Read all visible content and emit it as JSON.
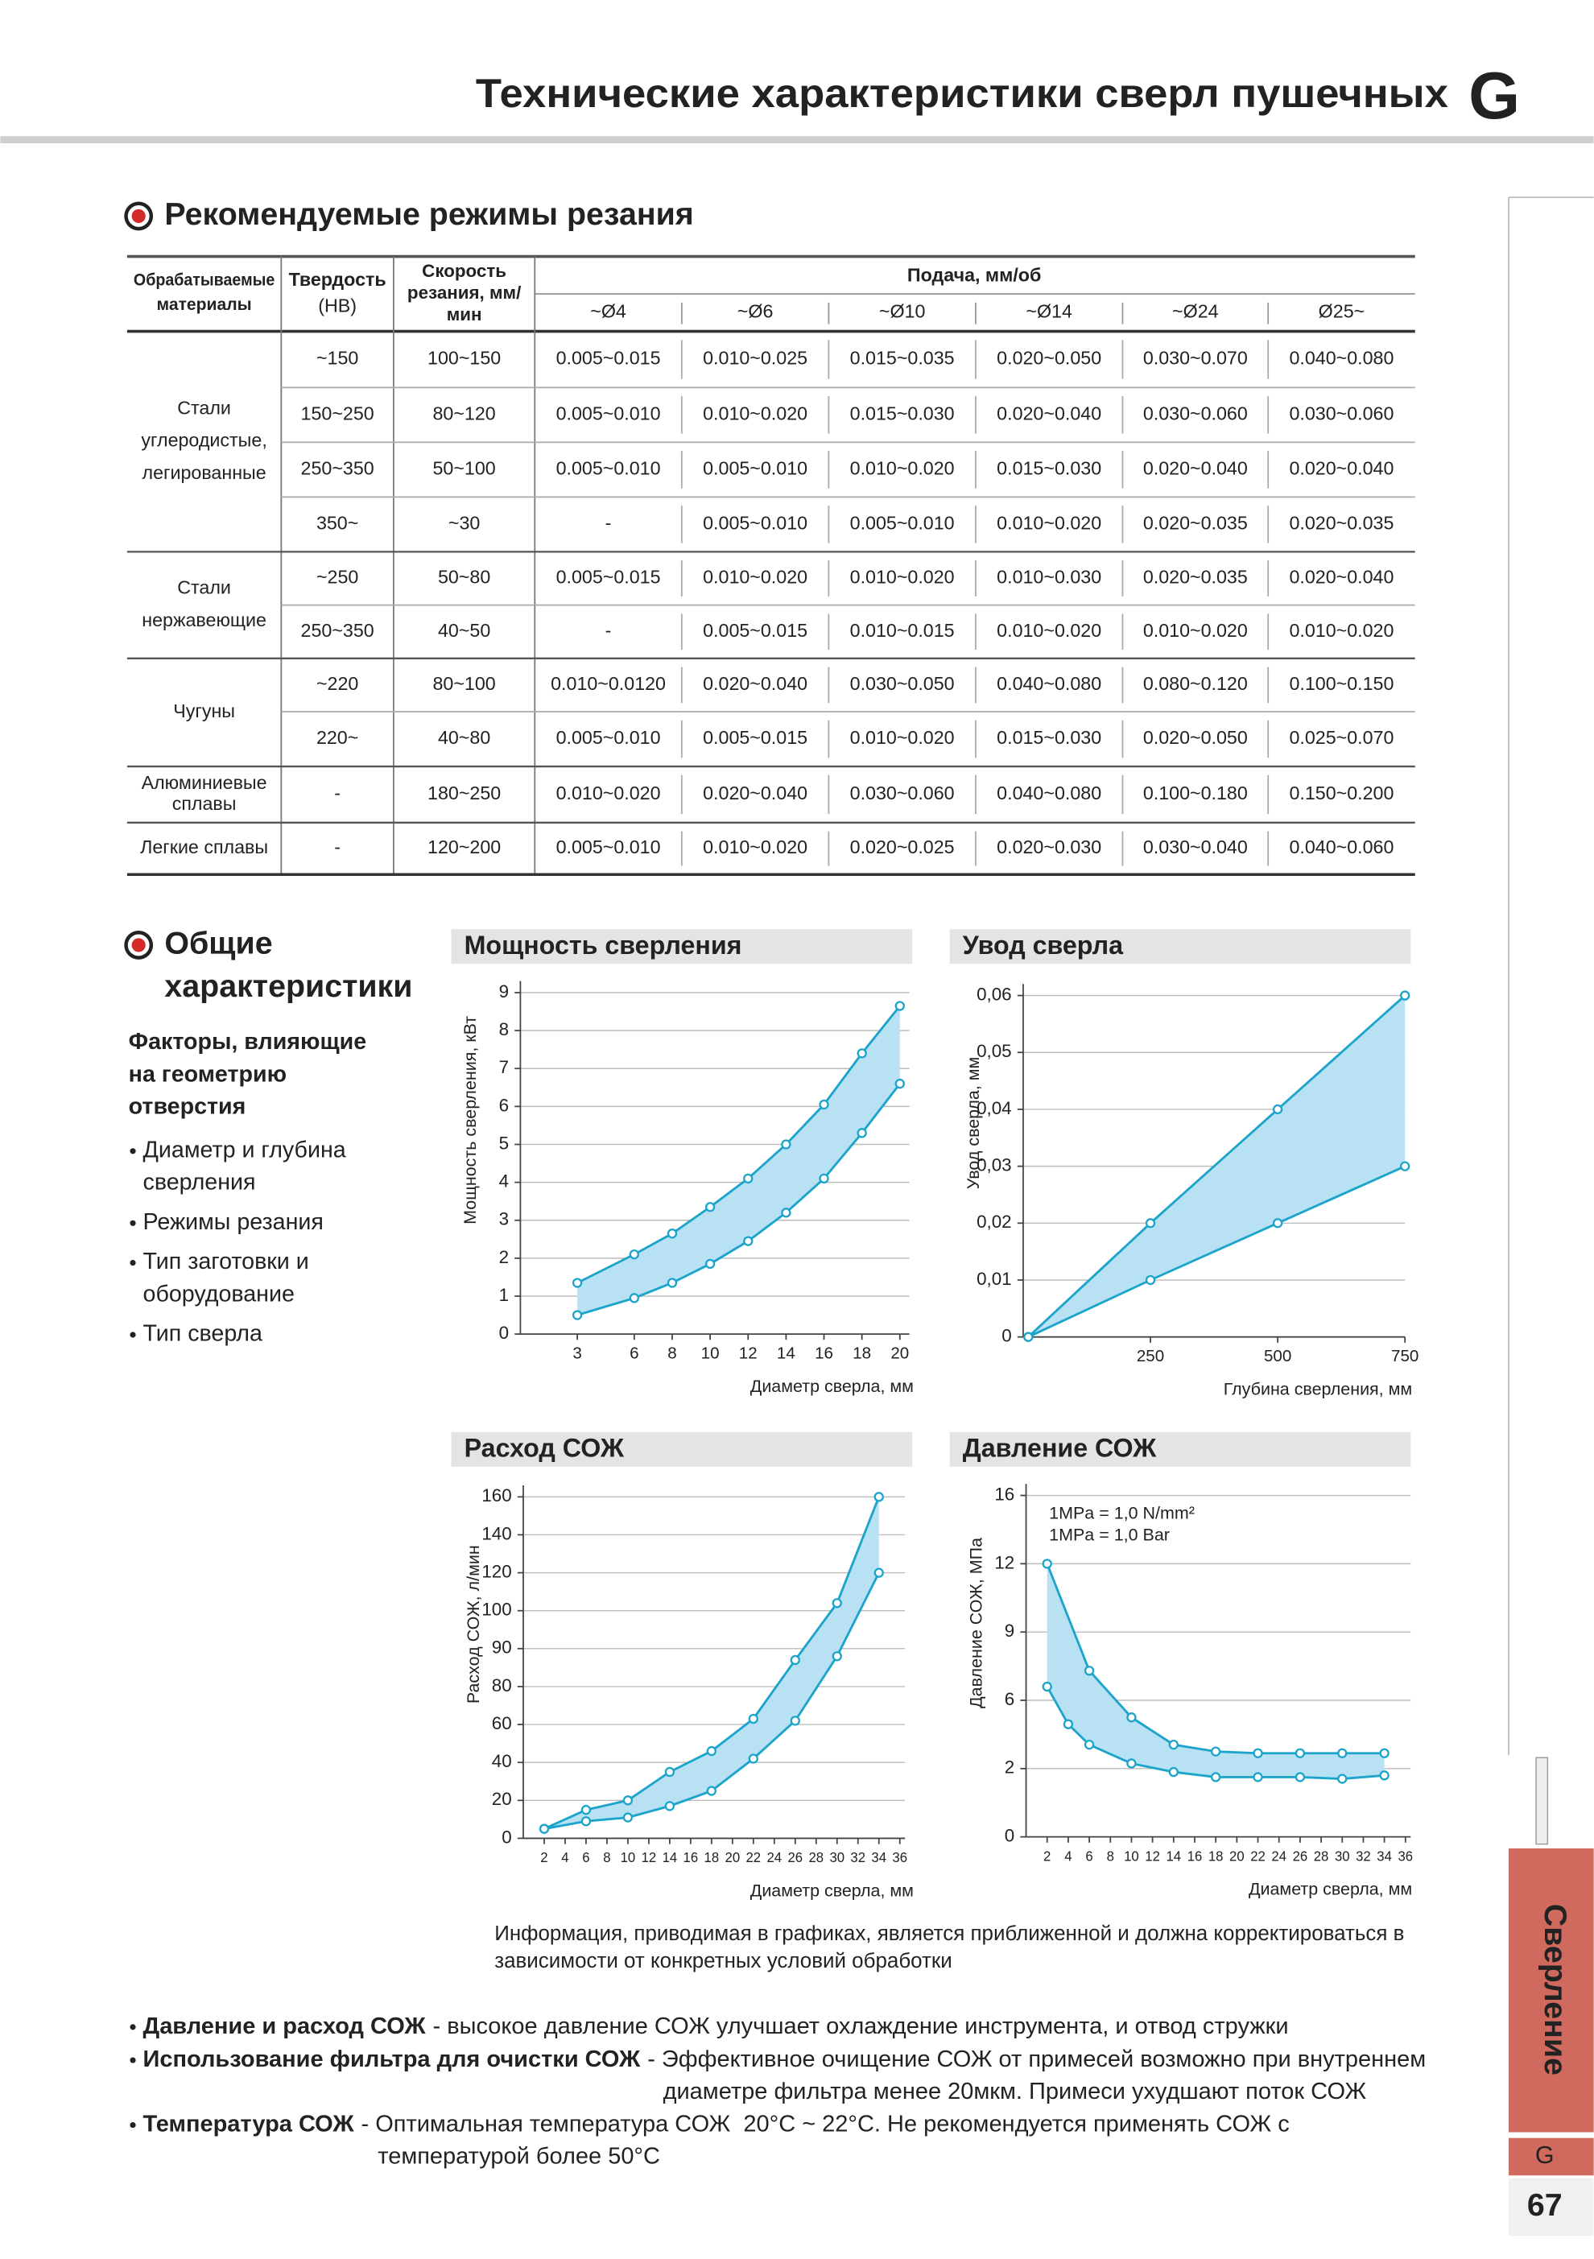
{
  "header": {
    "title": "Технические характеристики сверл пушечных",
    "letter": "G"
  },
  "sidebar": {
    "section": "Сверление",
    "letter": "G",
    "page": "67"
  },
  "section1": {
    "title": "Рекомендуемые режимы резания"
  },
  "table": {
    "headers": {
      "material": [
        "Обрабатываемые",
        "материалы"
      ],
      "hardness": [
        "Твердость",
        "(HB)"
      ],
      "speed": [
        "Скорость",
        "резания, мм/",
        "мин"
      ],
      "feed": "Подача, мм/об",
      "diameters": [
        "~Ø4",
        "~Ø6",
        "~Ø10",
        "~Ø14",
        "~Ø24",
        "Ø25~"
      ]
    },
    "groups": [
      {
        "material": [
          "Стали",
          "углеродистые,",
          "легированные"
        ],
        "rows": [
          [
            "~150",
            "100~150",
            "0.005~0.015",
            "0.010~0.025",
            "0.015~0.035",
            "0.020~0.050",
            "0.030~0.070",
            "0.040~0.080"
          ],
          [
            "150~250",
            "80~120",
            "0.005~0.010",
            "0.010~0.020",
            "0.015~0.030",
            "0.020~0.040",
            "0.030~0.060",
            "0.030~0.060"
          ],
          [
            "250~350",
            "50~100",
            "0.005~0.010",
            "0.005~0.010",
            "0.010~0.020",
            "0.015~0.030",
            "0.020~0.040",
            "0.020~0.040"
          ],
          [
            "350~",
            "~30",
            "-",
            "0.005~0.010",
            "0.005~0.010",
            "0.010~0.020",
            "0.020~0.035",
            "0.020~0.035"
          ]
        ]
      },
      {
        "material": [
          "Стали",
          "нержавеющие"
        ],
        "rows": [
          [
            "~250",
            "50~80",
            "0.005~0.015",
            "0.010~0.020",
            "0.010~0.020",
            "0.010~0.030",
            "0.020~0.035",
            "0.020~0.040"
          ],
          [
            "250~350",
            "40~50",
            "-",
            "0.005~0.015",
            "0.010~0.015",
            "0.010~0.020",
            "0.010~0.020",
            "0.010~0.020"
          ]
        ]
      },
      {
        "material": [
          "Чугуны"
        ],
        "rows": [
          [
            "~220",
            "80~100",
            "0.010~0.0120",
            "0.020~0.040",
            "0.030~0.050",
            "0.040~0.080",
            "0.080~0.120",
            "0.100~0.150"
          ],
          [
            "220~",
            "40~80",
            "0.005~0.010",
            "0.005~0.015",
            "0.010~0.020",
            "0.015~0.030",
            "0.020~0.050",
            "0.025~0.070"
          ]
        ]
      },
      {
        "material": [
          "Алюминиевые",
          "сплавы"
        ],
        "rows": [
          [
            "-",
            "180~250",
            "0.010~0.020",
            "0.020~0.040",
            "0.030~0.060",
            "0.040~0.080",
            "0.100~0.180",
            "0.150~0.200"
          ]
        ]
      },
      {
        "material": [
          "Легкие сплавы"
        ],
        "rows": [
          [
            "-",
            "120~200",
            "0.005~0.010",
            "0.010~0.020",
            "0.020~0.025",
            "0.020~0.030",
            "0.030~0.040",
            "0.040~0.060"
          ]
        ]
      }
    ]
  },
  "section2": {
    "title": [
      "Общие",
      "характеристики"
    ],
    "factors_title": [
      "Факторы, влияющие",
      "на геометрию",
      "отверстия"
    ],
    "factors": [
      [
        "Диаметр и глубина",
        "сверления"
      ],
      [
        "Режимы резания"
      ],
      [
        "Тип заготовки и",
        "оборудование"
      ],
      [
        "Тип сверла"
      ]
    ]
  },
  "chart_data": [
    {
      "type": "line",
      "title": "Мощность сверления",
      "x_label": "Диаметр сверла, мм",
      "y_label": "Мощность сверления, кВт",
      "xlim": [
        0,
        20.5
      ],
      "xticks": [
        3,
        6,
        8,
        10,
        12,
        14,
        16,
        18,
        20
      ],
      "ylim": [
        0,
        9
      ],
      "yticks": [
        0,
        1,
        2,
        3,
        4,
        5,
        6,
        7,
        8,
        9
      ],
      "grid": true,
      "fill_between": true,
      "fill_color": "#b8e2f4",
      "series": [
        {
          "color": "#1ca4cb",
          "x": [
            3,
            6,
            8,
            10,
            12,
            14,
            16,
            18,
            20
          ],
          "values": [
            1.35,
            2.1,
            2.65,
            3.35,
            4.1,
            5.0,
            6.05,
            7.4,
            8.65
          ]
        },
        {
          "color": "#1ca4cb",
          "x": [
            3,
            6,
            8,
            10,
            12,
            14,
            16,
            18,
            20
          ],
          "values": [
            0.5,
            0.95,
            1.35,
            1.85,
            2.45,
            3.2,
            4.1,
            5.3,
            6.6
          ]
        }
      ]
    },
    {
      "type": "line",
      "title": "Увод сверла",
      "x_label": "Глубина сверления, мм",
      "y_label": "Увод сверла, мм",
      "xlim": [
        0,
        750
      ],
      "xticks": [
        250,
        500,
        750
      ],
      "ylim": [
        0,
        0.06
      ],
      "yticks": [
        0,
        {
          "value": 0.01,
          "label": "0,01"
        },
        {
          "value": 0.02,
          "label": "0,02"
        },
        {
          "value": 0.03,
          "label": "0,03"
        },
        {
          "value": 0.04,
          "label": "0,04"
        },
        {
          "value": 0.05,
          "label": "0,05"
        },
        {
          "value": 0.06,
          "label": "0,06"
        }
      ],
      "grid": true,
      "fill_between": true,
      "fill_color": "#b8e2f4",
      "series": [
        {
          "color": "#1ca4cb",
          "x": [
            10,
            250,
            500,
            750
          ],
          "values": [
            0,
            0.02,
            0.04,
            0.06
          ]
        },
        {
          "color": "#1ca4cb",
          "x": [
            10,
            250,
            500,
            750
          ],
          "values": [
            0,
            0.01,
            0.02,
            0.03
          ]
        }
      ]
    },
    {
      "type": "line",
      "title": "Расход СОЖ",
      "x_label": "Диаметр сверла, мм",
      "y_label": "Расход СОЖ, л/мин",
      "xlim": [
        0,
        36.5
      ],
      "xticks": [
        2,
        4,
        6,
        8,
        10,
        12,
        14,
        16,
        18,
        20,
        22,
        24,
        26,
        28,
        30,
        32,
        34,
        36
      ],
      "ylim": [
        0,
        160
      ],
      "yticks": [
        0,
        20,
        40,
        60,
        80,
        90,
        100,
        120,
        140,
        160
      ],
      "grid": true,
      "fill_between": true,
      "fill_color": "#b8e2f4",
      "series": [
        {
          "color": "#1ca4cb",
          "x": [
            2,
            6,
            10,
            14,
            18,
            22,
            26,
            30,
            34
          ],
          "values": [
            5,
            15,
            20,
            35,
            46,
            63,
            87,
            104,
            160
          ]
        },
        {
          "color": "#1ca4cb",
          "x": [
            2,
            6,
            10,
            14,
            18,
            22,
            26,
            30,
            34
          ],
          "values": [
            5,
            9,
            11,
            17,
            25,
            42,
            62,
            88,
            120
          ]
        }
      ]
    },
    {
      "type": "line",
      "title": "Давление СОЖ",
      "x_label": "Диаметр сверла, мм",
      "y_label": "Давление СОЖ, МПа",
      "annotations": [
        "1MPa = 1,0 N/mm²",
        "1MPa = 1,0 Bar"
      ],
      "xlim": [
        0,
        36.5
      ],
      "xticks": [
        2,
        4,
        6,
        8,
        10,
        12,
        14,
        16,
        18,
        20,
        22,
        24,
        26,
        28,
        30,
        32,
        34,
        36
      ],
      "ylim": [
        0,
        16
      ],
      "yticks": [
        0,
        2,
        6,
        9,
        12,
        16
      ],
      "grid": true,
      "fill_between": true,
      "fill_color": "#b8e2f4",
      "series": [
        {
          "color": "#1ca4cb",
          "x": [
            2,
            6,
            10,
            14,
            18,
            22,
            26,
            30,
            34
          ],
          "values": [
            12,
            7.3,
            5.0,
            3.4,
            3.0,
            2.9,
            2.9,
            2.9,
            2.9
          ]
        },
        {
          "color": "#1ca4cb",
          "x": [
            2,
            4,
            6,
            10,
            14,
            18,
            22,
            26,
            30,
            34
          ],
          "values": [
            6.6,
            4.6,
            3.4,
            2.3,
            1.9,
            1.75,
            1.75,
            1.75,
            1.7,
            1.8
          ]
        }
      ]
    }
  ],
  "chart_note": [
    "Информация, приводимая в графиках, является приближенной и должна корректироваться в",
    "зависимости от конкретных условий обработки"
  ],
  "notes": [
    {
      "term": "Давление и расход СОЖ",
      "lines": [
        "- высокое давление СОЖ улучшает охлаждение инструмента, и отвод стружки"
      ]
    },
    {
      "term": "Использование фильтра для очистки СОЖ",
      "lines": [
        "- Эффективное очищение СОЖ от примесей возможно при внутреннем",
        "диаметре фильтра менее 20мкм. Примеси ухудшают поток СОЖ"
      ]
    },
    {
      "term": "Температура СОЖ",
      "lines": [
        "- Оптимальная температура СОЖ  20°C ~ 22°C. Не рекомендуется применять СОЖ с",
        "температурой более 50°C"
      ]
    }
  ]
}
